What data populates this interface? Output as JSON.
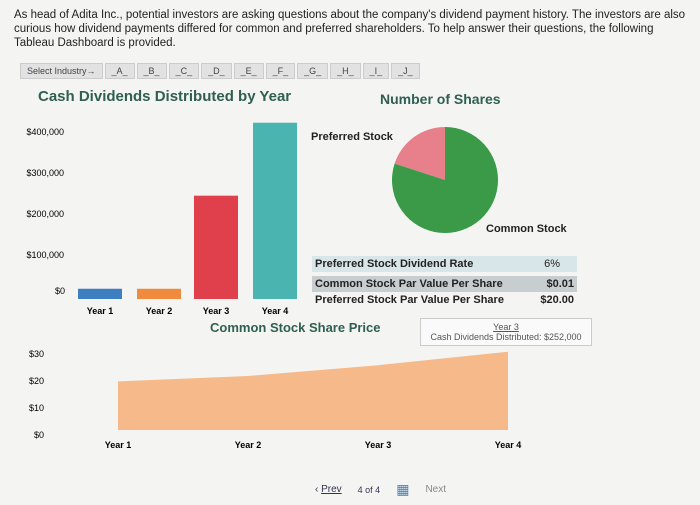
{
  "intro": "As head of Adita Inc., potential investors are asking questions about the company's dividend payment history. The investors are also curious how dividend payments differed for common and preferred shareholders. To help answer their questions, the following Tableau Dashboard is provided.",
  "filters": [
    "Select Industry→",
    "_A_",
    "_B_",
    "_C_",
    "_D_",
    "_E_",
    "_F_",
    "_G_",
    "_H_",
    "_I_",
    "_J_"
  ],
  "bar_title": "Cash Dividends Distributed by Year",
  "pie_title": "Number of Shares",
  "area_title": "Common Stock Share Price",
  "pie": {
    "preferred_label": "Preferred Stock",
    "common_label": "Common Stock",
    "preferred_fraction": 0.2,
    "colors": {
      "preferred": "#e8808c",
      "common": "#3a9a48"
    }
  },
  "info": [
    {
      "label": "Preferred Stock Dividend Rate",
      "value": "6%"
    },
    {
      "label": "Common Stock Par Value Per Share",
      "value": "$0.01"
    },
    {
      "label": "Preferred Stock Par Value Per Share",
      "value": "$20.00"
    }
  ],
  "tooltip": {
    "title": "Year 3",
    "text": "Cash Dividends Distributed: $252,000"
  },
  "chart_data": [
    {
      "type": "bar",
      "title": "Cash Dividends Distributed by Year",
      "categories": [
        "Year 1",
        "Year 2",
        "Year 3",
        "Year 4"
      ],
      "values": [
        25000,
        25000,
        252000,
        430000
      ],
      "colors": [
        "#3d7fc0",
        "#f08a3c",
        "#e0404c",
        "#4ab5b0"
      ],
      "yticks": [
        "$400,000",
        "$300,000",
        "$200,000",
        "$100,000",
        "$0"
      ],
      "ylim": [
        0,
        400000
      ]
    },
    {
      "type": "area",
      "title": "Common Stock Share Price",
      "categories": [
        "Year 1",
        "Year 2",
        "Year 3",
        "Year 4"
      ],
      "values": [
        18,
        20,
        24,
        29
      ],
      "color": "#f5b98a",
      "yticks": [
        "$30",
        "$20",
        "$10",
        "$0"
      ],
      "ylim": [
        0,
        30
      ]
    }
  ],
  "pager": {
    "prev": "Prev",
    "page": "4 of 4",
    "next": "Next"
  }
}
